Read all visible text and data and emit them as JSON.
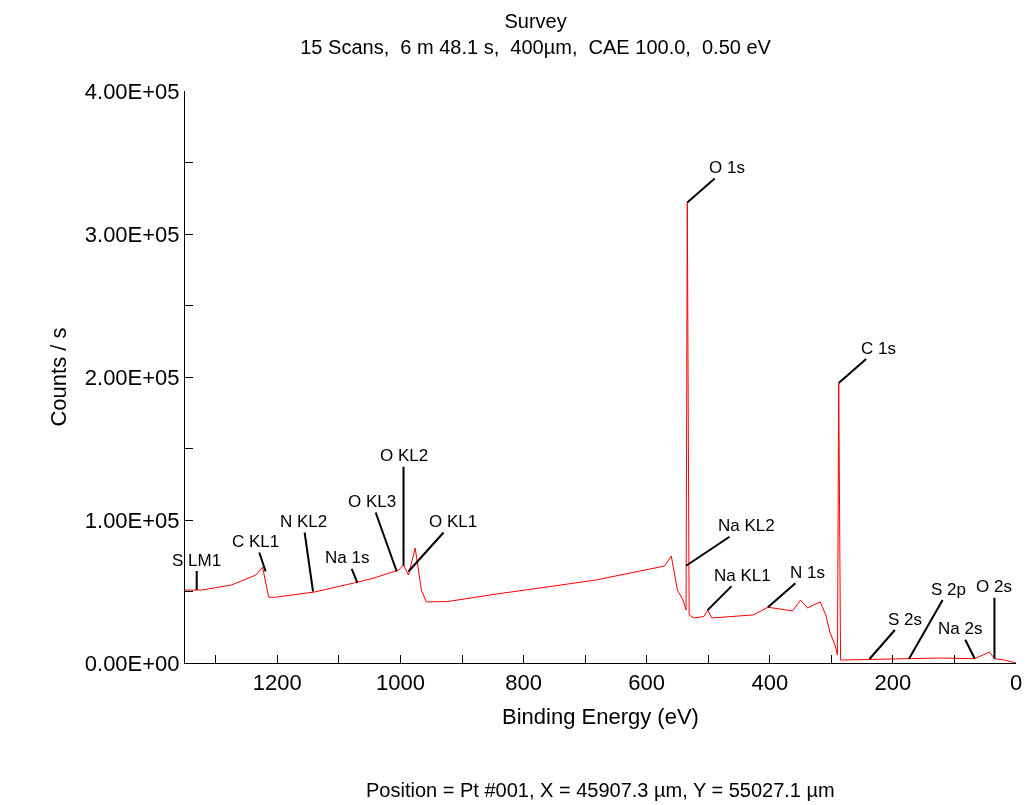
{
  "chart_data": {
    "type": "line",
    "title": "Survey",
    "subtitle": "15 Scans,  6 m 48.1 s,  400µm,  CAE 100.0,  0.50 eV",
    "xlabel": "Binding Energy (eV)",
    "ylabel": "Counts / s",
    "x": [
      1350,
      1323,
      1275,
      1235,
      1224,
      1214,
      1203,
      1139,
      1075,
      1043,
      1003,
      995,
      987,
      976,
      966,
      958,
      923,
      843,
      763,
      683,
      603,
      571,
      560,
      550,
      541,
      536,
      534,
      531,
      523,
      507,
      501,
      494,
      427,
      403,
      363,
      350,
      339,
      318,
      309,
      302,
      294,
      290,
      288,
      285,
      280,
      203,
      123,
      67,
      43,
      35,
      19,
      0
    ],
    "series": [
      {
        "color": "#ff0000",
        "values": [
          51000,
          51000,
          54500,
          61500,
          67000,
          46000,
          46000,
          49700,
          56000,
          59400,
          65000,
          68500,
          61500,
          80400,
          51000,
          42700,
          43000,
          48300,
          53100,
          58000,
          65000,
          67800,
          74800,
          51000,
          44000,
          37000,
          322000,
          33600,
          31500,
          32500,
          37000,
          31500,
          33600,
          39000,
          36400,
          44000,
          38500,
          42700,
          33600,
          21000,
          12600,
          5600,
          195800,
          2100,
          2100,
          2800,
          3500,
          3000,
          7700,
          3000,
          2100,
          0
        ]
      }
    ],
    "xlim": [
      1350,
      0
    ],
    "xticks": [
      {
        "value": 1300,
        "label": null
      },
      1200,
      {
        "value": 1100,
        "label": null
      },
      1000,
      {
        "value": 900,
        "label": null
      },
      800,
      {
        "value": 700,
        "label": null
      },
      600,
      {
        "value": 500,
        "label": null
      },
      400,
      {
        "value": 300,
        "label": null
      },
      200,
      {
        "value": 100,
        "label": null
      },
      0
    ],
    "ylim": [
      0,
      400000
    ],
    "yticks": [
      {
        "value": 0,
        "label": "0.00E+00"
      },
      {
        "value": 50000,
        "label": null
      },
      {
        "value": 100000,
        "label": "1.00E+05"
      },
      {
        "value": 150000,
        "label": null
      },
      {
        "value": 200000,
        "label": "2.00E+05"
      },
      {
        "value": 250000,
        "label": null
      },
      {
        "value": 300000,
        "label": "3.00E+05"
      },
      {
        "value": 350000,
        "label": null
      },
      {
        "value": 400000,
        "label": "4.00E+05"
      }
    ],
    "grid": false,
    "marker": "none",
    "line_style": "solid",
    "annotations": [
      {
        "text": "O 1s",
        "x": 534,
        "y": 322000
      },
      {
        "text": "C 1s",
        "x": 288,
        "y": 195800
      },
      {
        "text": "Na KL2",
        "x": 536,
        "y": 68000
      },
      {
        "text": "Na KL1",
        "x": 501,
        "y": 37000
      },
      {
        "text": "N 1s",
        "x": 403,
        "y": 39000
      },
      {
        "text": "S LM1",
        "x": 1331,
        "y": 51000
      },
      {
        "text": "C KL1",
        "x": 1219,
        "y": 64000
      },
      {
        "text": "N KL2",
        "x": 1142,
        "y": 50000
      },
      {
        "text": "Na 1s",
        "x": 1070,
        "y": 56000
      },
      {
        "text": "O KL3",
        "x": 1006,
        "y": 64000
      },
      {
        "text": "O KL2",
        "x": 995,
        "y": 68000
      },
      {
        "text": "O KL1",
        "x": 987,
        "y": 64000
      },
      {
        "text": "S 2s",
        "x": 238,
        "y": 2800
      },
      {
        "text": "S 2p",
        "x": 174,
        "y": 2800
      },
      {
        "text": "Na 2s",
        "x": 67,
        "y": 3000
      },
      {
        "text": "O 2s",
        "x": 35,
        "y": 3000
      },
      "Position = Pt #001, X = 45907.3 µm, Y = 55027.1 µm"
    ]
  }
}
